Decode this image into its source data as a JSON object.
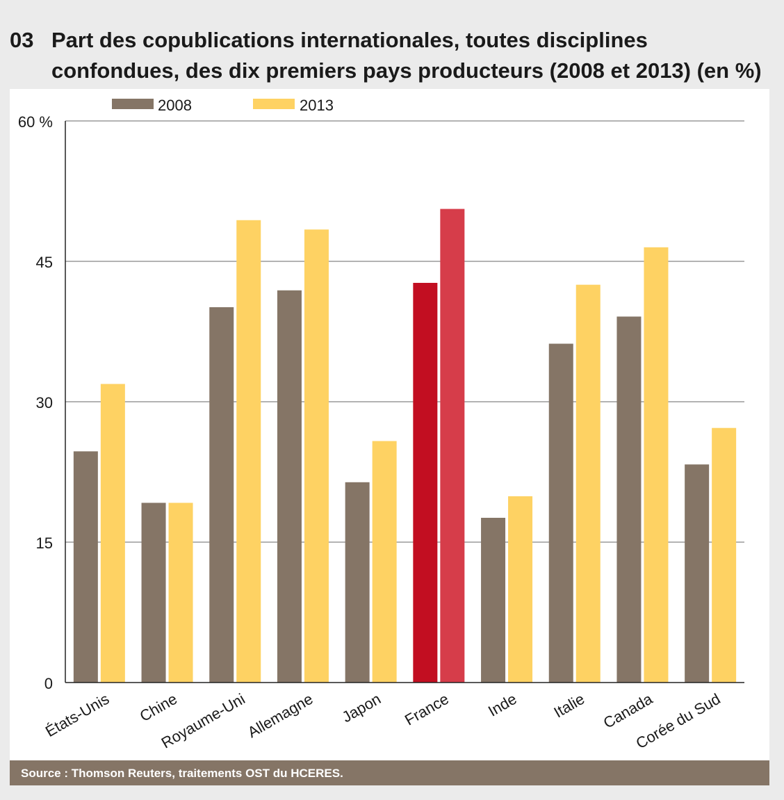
{
  "header": {
    "number": "03",
    "title": "Part des copublications internationales, toutes disciplines confondues, des dix premiers pays producteurs (2008 et 2013) (en %)"
  },
  "source": "Source : Thomson Reuters, traitements OST du HCERES.",
  "colors": {
    "series_2008": "#857566",
    "series_2013": "#fed263",
    "highlight_2008": "#c20e21",
    "highlight_2013": "#d63d4a",
    "gridline": "#9a9a9a",
    "source_bar": "#857566"
  },
  "chart_data": {
    "type": "bar",
    "title": "Part des copublications internationales, toutes disciplines confondues, des dix premiers pays producteurs (2008 et 2013) (en %)",
    "xlabel": "",
    "ylabel": "",
    "ylim": [
      0,
      60
    ],
    "yticks": [
      0,
      15,
      30,
      45,
      60
    ],
    "ytick_labels": [
      "0",
      "15",
      "30",
      "45",
      "60 %"
    ],
    "grid": true,
    "legend_position": "top-left",
    "highlight_category": "France",
    "categories": [
      "États-Unis",
      "Chine",
      "Royaume-Uni",
      "Allemagne",
      "Japon",
      "France",
      "Inde",
      "Italie",
      "Canada",
      "Corée du Sud"
    ],
    "series": [
      {
        "name": "2008",
        "values": [
          24.7,
          19.2,
          40.1,
          41.9,
          21.4,
          42.7,
          17.6,
          36.2,
          39.1,
          23.3
        ]
      },
      {
        "name": "2013",
        "values": [
          31.9,
          19.2,
          49.4,
          48.4,
          25.8,
          50.6,
          19.9,
          42.5,
          46.5,
          27.2
        ]
      }
    ]
  }
}
